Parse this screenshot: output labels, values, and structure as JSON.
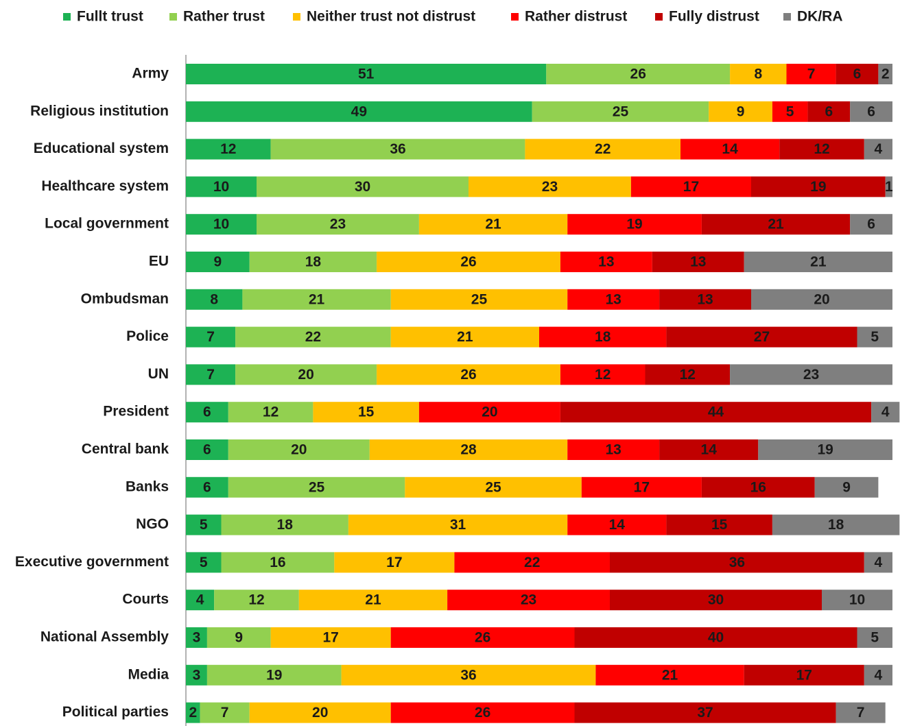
{
  "chart_data": {
    "type": "stacked_bar_horizontal",
    "categories": [
      "Army",
      "Religious institution",
      "Educational system",
      "Healthcare system",
      "Local government",
      "EU",
      "Ombudsman",
      "Police",
      "UN",
      "President",
      "Central bank",
      "Banks",
      "NGO",
      "Executive government",
      "Courts",
      "National Assembly",
      "Media",
      "Political parties"
    ],
    "series": [
      {
        "name": "Fullt trust",
        "color": "#1db254",
        "values": [
          51,
          49,
          12,
          10,
          10,
          9,
          8,
          7,
          7,
          6,
          6,
          6,
          5,
          5,
          4,
          3,
          3,
          2
        ]
      },
      {
        "name": "Rather trust",
        "color": "#92d050",
        "values": [
          26,
          25,
          36,
          30,
          23,
          18,
          21,
          22,
          20,
          12,
          20,
          25,
          18,
          16,
          12,
          9,
          19,
          7
        ]
      },
      {
        "name": "Neither trust not distrust",
        "color": "#ffc000",
        "values": [
          8,
          9,
          22,
          23,
          21,
          26,
          25,
          21,
          26,
          15,
          28,
          25,
          31,
          17,
          21,
          17,
          36,
          20
        ]
      },
      {
        "name": "Rather distrust",
        "color": "#ff0000",
        "values": [
          7,
          5,
          14,
          17,
          19,
          13,
          13,
          18,
          12,
          20,
          13,
          17,
          14,
          22,
          23,
          26,
          21,
          26
        ]
      },
      {
        "name": "Fully distrust",
        "color": "#c00000",
        "values": [
          6,
          6,
          12,
          19,
          21,
          13,
          13,
          27,
          12,
          44,
          14,
          16,
          15,
          36,
          30,
          40,
          17,
          37
        ]
      },
      {
        "name": "DK/RA",
        "color": "#7f7f7f",
        "values": [
          2,
          6,
          4,
          1,
          6,
          21,
          20,
          5,
          23,
          4,
          19,
          9,
          18,
          4,
          10,
          5,
          4,
          7
        ]
      }
    ],
    "xlim": [
      0,
      100
    ],
    "legend": "top"
  }
}
